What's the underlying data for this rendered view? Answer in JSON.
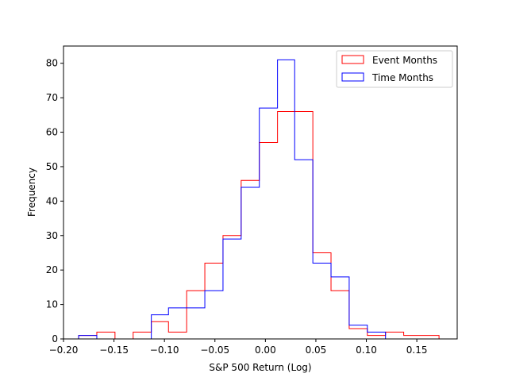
{
  "chart_data": {
    "type": "histogram",
    "title": "",
    "xlabel": "S&P 500 Return (Log)",
    "ylabel": "Frequency",
    "xlim": [
      -0.2,
      0.19
    ],
    "ylim": [
      0,
      85
    ],
    "xticks": [
      -0.2,
      -0.15,
      -0.1,
      -0.05,
      0.0,
      0.05,
      0.1,
      0.15
    ],
    "xtick_labels": [
      "−0.20",
      "−0.15",
      "−0.10",
      "−0.05",
      "0.00",
      "0.05",
      "0.10",
      "0.15"
    ],
    "yticks": [
      0,
      10,
      20,
      30,
      40,
      50,
      60,
      70,
      80
    ],
    "ytick_labels": [
      "0",
      "10",
      "20",
      "30",
      "40",
      "50",
      "60",
      "70",
      "80"
    ],
    "grid": false,
    "legend_position": "top-right",
    "series": [
      {
        "name": "Event Months",
        "color": "#ff0000",
        "bin_edges": [
          -0.185,
          -0.167,
          -0.149,
          -0.131,
          -0.113,
          -0.096,
          -0.078,
          -0.06,
          -0.042,
          -0.024,
          -0.006,
          0.012,
          0.029,
          0.047,
          0.065,
          0.083,
          0.101,
          0.119,
          0.137,
          0.154,
          0.172
        ],
        "counts": [
          1,
          2,
          0,
          2,
          5,
          2,
          14,
          22,
          30,
          46,
          57,
          66,
          66,
          25,
          14,
          3,
          1,
          2,
          1,
          1
        ]
      },
      {
        "name": "Time Months",
        "color": "#0000ff",
        "bin_edges": [
          -0.185,
          -0.167,
          -0.149,
          -0.131,
          -0.113,
          -0.096,
          -0.078,
          -0.06,
          -0.042,
          -0.024,
          -0.006,
          0.012,
          0.029,
          0.047,
          0.065,
          0.083,
          0.101,
          0.119
        ],
        "counts": [
          1,
          0,
          0,
          0,
          7,
          9,
          9,
          14,
          29,
          44,
          67,
          81,
          52,
          22,
          18,
          4,
          2
        ]
      }
    ]
  }
}
